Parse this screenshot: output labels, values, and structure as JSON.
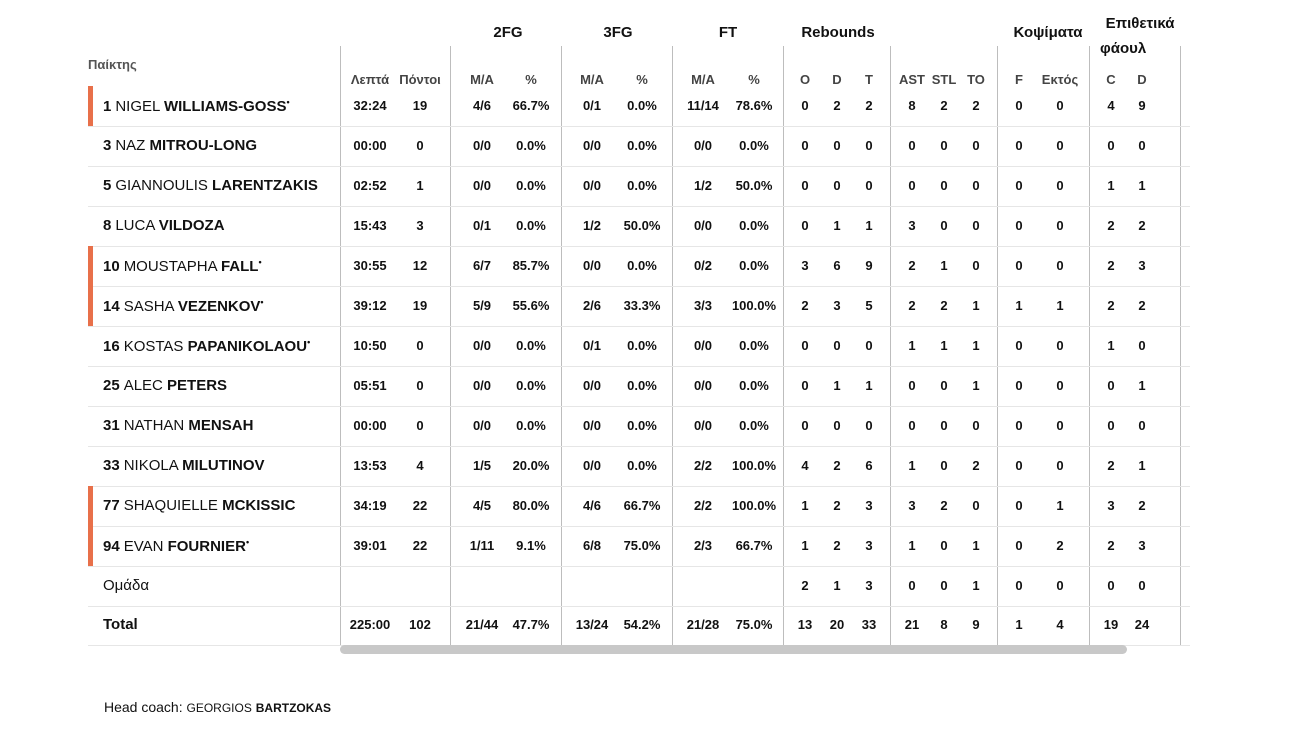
{
  "header": {
    "player_col": "Παίκτης",
    "minutes": "Λεπτά",
    "points": "Πόντοι",
    "groups": {
      "fg2": "2FG",
      "fg3": "3FG",
      "ft": "FT",
      "rebounds": "Rebounds",
      "blocks": "Κοψίματα",
      "fouls_line1": "Επιθετικά",
      "fouls_line2": "φάουλ"
    },
    "sub": {
      "fg2_ma": "M/A",
      "fg2_pct": "%",
      "fg3_ma": "M/A",
      "fg3_pct": "%",
      "ft_ma": "M/A",
      "ft_pct": "%",
      "reb_o": "O",
      "reb_d": "D",
      "reb_t": "T",
      "ast": "AST",
      "stl": "STL",
      "to": "TO",
      "blk_f": "F",
      "blk_against": "Εκτός",
      "foul_c": "C",
      "foul_d": "D"
    }
  },
  "accent_color": "#e8704a",
  "players": [
    {
      "num": "1",
      "first": "NIGEL",
      "last": "WILLIAMS-GOSS",
      "starter": true,
      "min": "32:24",
      "pts": "19",
      "fg2": "4/6",
      "fg2p": "66.7%",
      "fg3": "0/1",
      "fg3p": "0.0%",
      "ft": "11/14",
      "ftp": "78.6%",
      "o": "0",
      "d": "2",
      "t": "2",
      "ast": "8",
      "stl": "2",
      "to": "2",
      "bf": "0",
      "ba": "0",
      "fc": "4",
      "fd": "9"
    },
    {
      "num": "3",
      "first": "NAZ",
      "last": "MITROU-LONG",
      "starter": false,
      "min": "00:00",
      "pts": "0",
      "fg2": "0/0",
      "fg2p": "0.0%",
      "fg3": "0/0",
      "fg3p": "0.0%",
      "ft": "0/0",
      "ftp": "0.0%",
      "o": "0",
      "d": "0",
      "t": "0",
      "ast": "0",
      "stl": "0",
      "to": "0",
      "bf": "0",
      "ba": "0",
      "fc": "0",
      "fd": "0"
    },
    {
      "num": "5",
      "first": "GIANNOULIS",
      "last": "LARENTZAKIS",
      "starter": false,
      "min": "02:52",
      "pts": "1",
      "fg2": "0/0",
      "fg2p": "0.0%",
      "fg3": "0/0",
      "fg3p": "0.0%",
      "ft": "1/2",
      "ftp": "50.0%",
      "o": "0",
      "d": "0",
      "t": "0",
      "ast": "0",
      "stl": "0",
      "to": "0",
      "bf": "0",
      "ba": "0",
      "fc": "1",
      "fd": "1"
    },
    {
      "num": "8",
      "first": "LUCA",
      "last": "VILDOZA",
      "starter": false,
      "min": "15:43",
      "pts": "3",
      "fg2": "0/1",
      "fg2p": "0.0%",
      "fg3": "1/2",
      "fg3p": "50.0%",
      "ft": "0/0",
      "ftp": "0.0%",
      "o": "0",
      "d": "1",
      "t": "1",
      "ast": "3",
      "stl": "0",
      "to": "0",
      "bf": "0",
      "ba": "0",
      "fc": "2",
      "fd": "2"
    },
    {
      "num": "10",
      "first": "MOUSTAPHA",
      "last": "FALL",
      "starter": true,
      "min": "30:55",
      "pts": "12",
      "fg2": "6/7",
      "fg2p": "85.7%",
      "fg3": "0/0",
      "fg3p": "0.0%",
      "ft": "0/2",
      "ftp": "0.0%",
      "o": "3",
      "d": "6",
      "t": "9",
      "ast": "2",
      "stl": "1",
      "to": "0",
      "bf": "0",
      "ba": "0",
      "fc": "2",
      "fd": "3"
    },
    {
      "num": "14",
      "first": "SASHA",
      "last": "VEZENKOV",
      "starter": true,
      "min": "39:12",
      "pts": "19",
      "fg2": "5/9",
      "fg2p": "55.6%",
      "fg3": "2/6",
      "fg3p": "33.3%",
      "ft": "3/3",
      "ftp": "100.0%",
      "o": "2",
      "d": "3",
      "t": "5",
      "ast": "2",
      "stl": "2",
      "to": "1",
      "bf": "1",
      "ba": "1",
      "fc": "2",
      "fd": "2"
    },
    {
      "num": "16",
      "first": "KOSTAS",
      "last": "PAPANIKOLAOU",
      "starter": true,
      "accent": false,
      "min": "10:50",
      "pts": "0",
      "fg2": "0/0",
      "fg2p": "0.0%",
      "fg3": "0/1",
      "fg3p": "0.0%",
      "ft": "0/0",
      "ftp": "0.0%",
      "o": "0",
      "d": "0",
      "t": "0",
      "ast": "1",
      "stl": "1",
      "to": "1",
      "bf": "0",
      "ba": "0",
      "fc": "1",
      "fd": "0"
    },
    {
      "num": "25",
      "first": "ALEC",
      "last": "PETERS",
      "starter": false,
      "min": "05:51",
      "pts": "0",
      "fg2": "0/0",
      "fg2p": "0.0%",
      "fg3": "0/0",
      "fg3p": "0.0%",
      "ft": "0/0",
      "ftp": "0.0%",
      "o": "0",
      "d": "1",
      "t": "1",
      "ast": "0",
      "stl": "0",
      "to": "1",
      "bf": "0",
      "ba": "0",
      "fc": "0",
      "fd": "1"
    },
    {
      "num": "31",
      "first": "NATHAN",
      "last": "MENSAH",
      "starter": false,
      "min": "00:00",
      "pts": "0",
      "fg2": "0/0",
      "fg2p": "0.0%",
      "fg3": "0/0",
      "fg3p": "0.0%",
      "ft": "0/0",
      "ftp": "0.0%",
      "o": "0",
      "d": "0",
      "t": "0",
      "ast": "0",
      "stl": "0",
      "to": "0",
      "bf": "0",
      "ba": "0",
      "fc": "0",
      "fd": "0"
    },
    {
      "num": "33",
      "first": "NIKOLA",
      "last": "MILUTINOV",
      "starter": false,
      "min": "13:53",
      "pts": "4",
      "fg2": "1/5",
      "fg2p": "20.0%",
      "fg3": "0/0",
      "fg3p": "0.0%",
      "ft": "2/2",
      "ftp": "100.0%",
      "o": "4",
      "d": "2",
      "t": "6",
      "ast": "1",
      "stl": "0",
      "to": "2",
      "bf": "0",
      "ba": "0",
      "fc": "2",
      "fd": "1"
    },
    {
      "num": "77",
      "first": "SHAQUIELLE",
      "last": "MCKISSIC",
      "starter": false,
      "accent": true,
      "min": "34:19",
      "pts": "22",
      "fg2": "4/5",
      "fg2p": "80.0%",
      "fg3": "4/6",
      "fg3p": "66.7%",
      "ft": "2/2",
      "ftp": "100.0%",
      "o": "1",
      "d": "2",
      "t": "3",
      "ast": "3",
      "stl": "2",
      "to": "0",
      "bf": "0",
      "ba": "1",
      "fc": "3",
      "fd": "2"
    },
    {
      "num": "94",
      "first": "EVAN",
      "last": "FOURNIER",
      "starter": true,
      "min": "39:01",
      "pts": "22",
      "fg2": "1/11",
      "fg2p": "9.1%",
      "fg3": "6/8",
      "fg3p": "75.0%",
      "ft": "2/3",
      "ftp": "66.7%",
      "o": "1",
      "d": "2",
      "t": "3",
      "ast": "1",
      "stl": "0",
      "to": "1",
      "bf": "0",
      "ba": "2",
      "fc": "2",
      "fd": "3"
    }
  ],
  "team": {
    "label": "Ομάδα",
    "o": "2",
    "d": "1",
    "t": "3",
    "ast": "0",
    "stl": "0",
    "to": "1",
    "bf": "0",
    "ba": "0",
    "fc": "0",
    "fd": "0"
  },
  "total": {
    "label": "Total",
    "min": "225:00",
    "pts": "102",
    "fg2": "21/44",
    "fg2p": "47.7%",
    "fg3": "13/24",
    "fg3p": "54.2%",
    "ft": "21/28",
    "ftp": "75.0%",
    "o": "13",
    "d": "20",
    "t": "33",
    "ast": "21",
    "stl": "8",
    "to": "9",
    "bf": "1",
    "ba": "4",
    "fc": "19",
    "fd": "24"
  },
  "coach": {
    "label": "Head coach:",
    "first": "GEORGIOS",
    "last": "BARTZOKAS"
  }
}
